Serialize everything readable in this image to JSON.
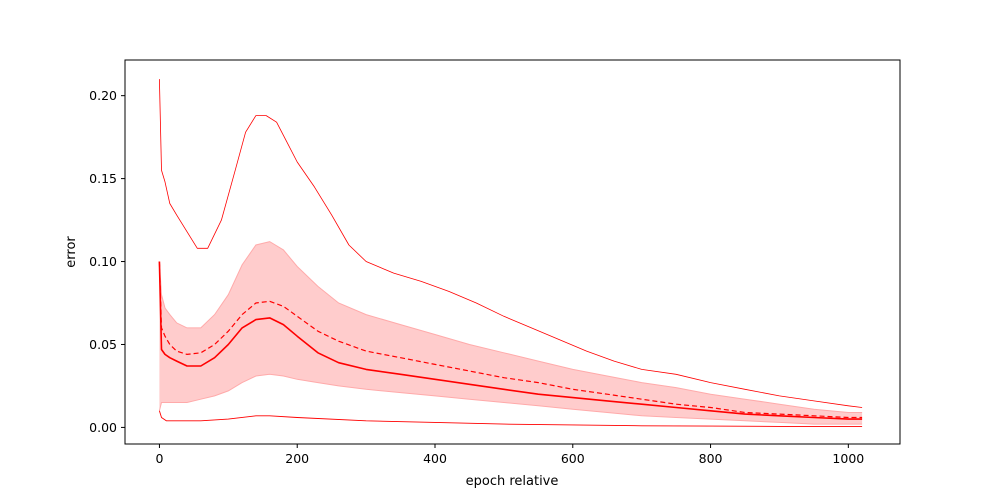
{
  "chart_data": {
    "type": "line",
    "title": "",
    "xlabel": "epoch relative",
    "ylabel": "error",
    "xlim": [
      -50,
      1075
    ],
    "ylim": [
      -0.01,
      0.2215
    ],
    "xticks": [
      0,
      200,
      400,
      600,
      800,
      1000
    ],
    "yticks": [
      0.0,
      0.05,
      0.1,
      0.15,
      0.2
    ],
    "xtick_labels": [
      "0",
      "200",
      "400",
      "600",
      "800",
      "1000"
    ],
    "ytick_labels": [
      "0.00",
      "0.05",
      "0.10",
      "0.15",
      "0.20"
    ],
    "grid": false,
    "colors": {
      "line": "#ff0000",
      "band": "#ffcccc",
      "band_edge": "#ffaaaa",
      "frame": "#000000"
    },
    "series": [
      {
        "role": "max",
        "style": "thin",
        "x": [
          0,
          3,
          8,
          15,
          25,
          40,
          55,
          70,
          90,
          110,
          125,
          140,
          155,
          170,
          185,
          200,
          225,
          250,
          275,
          300,
          340,
          380,
          420,
          460,
          500,
          540,
          580,
          620,
          660,
          700,
          750,
          800,
          850,
          900,
          950,
          1000,
          1020
        ],
        "y": [
          0.21,
          0.155,
          0.148,
          0.135,
          0.128,
          0.118,
          0.108,
          0.108,
          0.125,
          0.155,
          0.178,
          0.188,
          0.188,
          0.184,
          0.172,
          0.16,
          0.145,
          0.128,
          0.11,
          0.1,
          0.093,
          0.088,
          0.082,
          0.075,
          0.067,
          0.06,
          0.053,
          0.046,
          0.04,
          0.035,
          0.032,
          0.027,
          0.023,
          0.019,
          0.016,
          0.013,
          0.012
        ]
      },
      {
        "role": "upper-band",
        "x": [
          0,
          3,
          8,
          15,
          25,
          40,
          60,
          80,
          100,
          120,
          140,
          160,
          180,
          200,
          230,
          260,
          300,
          350,
          400,
          450,
          500,
          550,
          600,
          650,
          700,
          750,
          800,
          850,
          900,
          950,
          1000,
          1020
        ],
        "y": [
          0.1,
          0.08,
          0.072,
          0.068,
          0.063,
          0.06,
          0.06,
          0.068,
          0.08,
          0.098,
          0.11,
          0.112,
          0.107,
          0.097,
          0.085,
          0.075,
          0.068,
          0.062,
          0.056,
          0.05,
          0.045,
          0.04,
          0.035,
          0.031,
          0.027,
          0.024,
          0.02,
          0.017,
          0.014,
          0.011,
          0.009,
          0.009
        ]
      },
      {
        "role": "mean",
        "style": "dashed",
        "x": [
          0,
          3,
          8,
          15,
          25,
          40,
          60,
          80,
          100,
          120,
          140,
          160,
          180,
          200,
          230,
          260,
          300,
          350,
          400,
          450,
          500,
          550,
          600,
          650,
          700,
          750,
          800,
          850,
          900,
          950,
          1000,
          1020
        ],
        "y": [
          0.1,
          0.06,
          0.055,
          0.05,
          0.046,
          0.044,
          0.045,
          0.05,
          0.058,
          0.068,
          0.075,
          0.076,
          0.073,
          0.067,
          0.058,
          0.052,
          0.046,
          0.042,
          0.038,
          0.034,
          0.03,
          0.027,
          0.023,
          0.02,
          0.017,
          0.014,
          0.012,
          0.009,
          0.008,
          0.007,
          0.006,
          0.006
        ]
      },
      {
        "role": "median",
        "style": "solid",
        "x": [
          0,
          3,
          8,
          15,
          25,
          40,
          60,
          80,
          100,
          120,
          140,
          160,
          180,
          200,
          230,
          260,
          300,
          350,
          400,
          450,
          500,
          550,
          600,
          650,
          700,
          750,
          800,
          850,
          900,
          950,
          1000,
          1020
        ],
        "y": [
          0.1,
          0.047,
          0.044,
          0.042,
          0.04,
          0.037,
          0.037,
          0.042,
          0.05,
          0.06,
          0.065,
          0.066,
          0.062,
          0.055,
          0.045,
          0.039,
          0.035,
          0.032,
          0.029,
          0.026,
          0.023,
          0.02,
          0.018,
          0.016,
          0.014,
          0.012,
          0.01,
          0.008,
          0.007,
          0.006,
          0.005,
          0.005
        ]
      },
      {
        "role": "lower-band",
        "x": [
          0,
          3,
          8,
          15,
          25,
          40,
          60,
          80,
          100,
          120,
          140,
          160,
          180,
          200,
          230,
          260,
          300,
          350,
          400,
          450,
          500,
          550,
          600,
          650,
          700,
          750,
          800,
          850,
          900,
          950,
          1000,
          1020
        ],
        "y": [
          0.01,
          0.015,
          0.015,
          0.015,
          0.015,
          0.015,
          0.017,
          0.019,
          0.022,
          0.027,
          0.031,
          0.032,
          0.031,
          0.029,
          0.027,
          0.025,
          0.023,
          0.021,
          0.019,
          0.017,
          0.015,
          0.013,
          0.011,
          0.009,
          0.007,
          0.006,
          0.005,
          0.004,
          0.003,
          0.002,
          0.002,
          0.002
        ]
      },
      {
        "role": "min",
        "style": "thin",
        "x": [
          0,
          3,
          10,
          30,
          60,
          100,
          140,
          160,
          200,
          300,
          400,
          500,
          600,
          700,
          800,
          900,
          1000,
          1020
        ],
        "y": [
          0.01,
          0.006,
          0.004,
          0.004,
          0.004,
          0.005,
          0.007,
          0.007,
          0.006,
          0.004,
          0.003,
          0.002,
          0.0015,
          0.001,
          0.0008,
          0.0006,
          0.0005,
          0.0005
        ]
      }
    ]
  }
}
